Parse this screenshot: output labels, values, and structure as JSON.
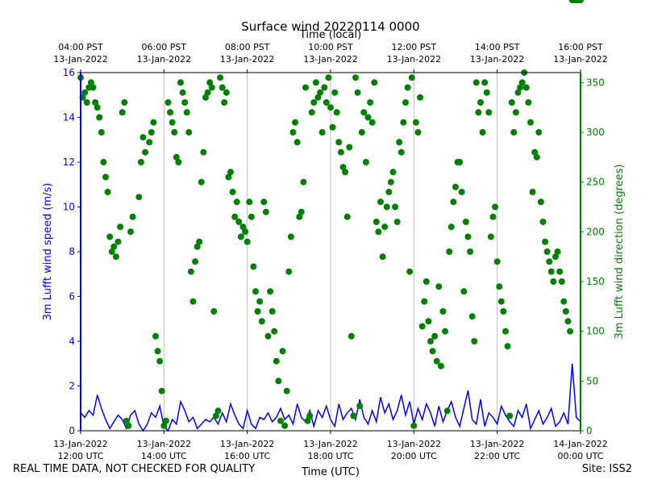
{
  "chart_data": {
    "type": "scatter",
    "title": "Surface wind 20220114 0000",
    "top_axis_label": "Time (local)",
    "top_ticks": [
      {
        "time": "04:00 PST",
        "date": "13-Jan-2022"
      },
      {
        "time": "06:00 PST",
        "date": "13-Jan-2022"
      },
      {
        "time": "08:00 PST",
        "date": "13-Jan-2022"
      },
      {
        "time": "10:00 PST",
        "date": "13-Jan-2022"
      },
      {
        "time": "12:00 PST",
        "date": "13-Jan-2022"
      },
      {
        "time": "14:00 PST",
        "date": "13-Jan-2022"
      },
      {
        "time": "16:00 PST",
        "date": "13-Jan-2022"
      }
    ],
    "bottom_ticks": [
      {
        "date": "13-Jan-2022",
        "time": "12:00 UTC"
      },
      {
        "date": "13-Jan-2022",
        "time": "14:00 UTC"
      },
      {
        "date": "13-Jan-2022",
        "time": "16:00 UTC"
      },
      {
        "date": "13-Jan-2022",
        "time": "18:00 UTC"
      },
      {
        "date": "13-Jan-2022",
        "time": "20:00 UTC"
      },
      {
        "date": "13-Jan-2022",
        "time": "22:00 UTC"
      },
      {
        "date": "14-Jan-2022",
        "time": "00:00 UTC"
      }
    ],
    "xlabel": "Time (UTC)",
    "xlim_hours_utc": [
      12,
      24
    ],
    "ylabel_left": "3m Lufft wind speed (m/s)",
    "ylim_left": [
      0,
      16
    ],
    "yticks_left": [
      "0",
      "2",
      "4",
      "6",
      "8",
      "10",
      "12",
      "14",
      "16"
    ],
    "ylabel_right": "3m Lufft wind direction (degrees)",
    "ylim_right": [
      0,
      360
    ],
    "yticks_right": [
      "0",
      "50",
      "100",
      "150",
      "200",
      "250",
      "300",
      "350"
    ],
    "grid": "vertical",
    "series": [
      {
        "name": "3m Lufft wind speed",
        "type": "line",
        "color": "#0000ff",
        "x_hours_utc": [
          12.0,
          12.1,
          12.2,
          12.3,
          12.4,
          12.5,
          12.6,
          12.7,
          12.8,
          12.9,
          13.0,
          13.1,
          13.2,
          13.3,
          13.4,
          13.5,
          13.6,
          13.7,
          13.8,
          13.9,
          14.0,
          14.1,
          14.2,
          14.3,
          14.4,
          14.5,
          14.6,
          14.7,
          14.8,
          14.9,
          15.0,
          15.1,
          15.2,
          15.3,
          15.4,
          15.5,
          15.6,
          15.7,
          15.8,
          15.9,
          16.0,
          16.1,
          16.2,
          16.3,
          16.4,
          16.5,
          16.6,
          16.7,
          16.8,
          16.9,
          17.0,
          17.1,
          17.2,
          17.3,
          17.4,
          17.5,
          17.6,
          17.7,
          17.8,
          17.9,
          18.0,
          18.1,
          18.2,
          18.3,
          18.4,
          18.5,
          18.6,
          18.7,
          18.8,
          18.9,
          19.0,
          19.1,
          19.2,
          19.3,
          19.4,
          19.5,
          19.6,
          19.7,
          19.8,
          19.9,
          20.0,
          20.1,
          20.2,
          20.3,
          20.4,
          20.5,
          20.6,
          20.7,
          20.8,
          20.9,
          21.0,
          21.1,
          21.2,
          21.3,
          21.4,
          21.5,
          21.6,
          21.7,
          21.8,
          21.9,
          22.0,
          22.1,
          22.2,
          22.3,
          22.4,
          22.5,
          22.6,
          22.7,
          22.8,
          22.9,
          23.0,
          23.1,
          23.2,
          23.3,
          23.4,
          23.5,
          23.6,
          23.7,
          23.8,
          23.9,
          24.0
        ],
        "values": [
          0.8,
          0.6,
          0.9,
          0.7,
          1.6,
          1.0,
          0.5,
          0.1,
          0.4,
          0.7,
          0.5,
          0.1,
          0.7,
          0.9,
          0.3,
          0.0,
          0.3,
          0.8,
          0.6,
          1.1,
          0.2,
          0.0,
          0.5,
          0.3,
          1.3,
          0.9,
          0.4,
          0.6,
          0.1,
          0.3,
          0.5,
          0.4,
          0.6,
          0.3,
          0.8,
          0.4,
          1.2,
          0.7,
          0.3,
          0.1,
          0.9,
          0.3,
          0.1,
          0.6,
          0.5,
          0.8,
          0.4,
          0.6,
          1.0,
          0.5,
          0.7,
          0.3,
          1.2,
          0.6,
          0.4,
          0.9,
          0.2,
          0.9,
          0.6,
          1.1,
          0.5,
          0.2,
          1.2,
          0.5,
          0.8,
          1.0,
          0.5,
          1.4,
          0.6,
          0.3,
          0.9,
          0.4,
          1.5,
          0.8,
          1.2,
          0.5,
          0.9,
          1.6,
          0.7,
          1.3,
          0.3,
          1.0,
          0.5,
          1.2,
          0.8,
          0.2,
          1.1,
          0.4,
          0.9,
          1.3,
          0.6,
          0.2,
          1.0,
          1.8,
          0.5,
          0.3,
          1.4,
          0.2,
          0.8,
          0.6,
          0.3,
          1.1,
          0.7,
          0.4,
          0.2,
          0.9,
          0.6,
          1.2,
          0.1,
          0.5,
          0.9,
          0.3,
          0.6,
          1.0,
          0.2,
          0.4,
          0.8,
          0.3,
          3.0,
          0.6,
          0.4
        ]
      },
      {
        "name": "3m Lufft wind direction",
        "type": "scatter",
        "color": "#008000",
        "x_hours_utc": [
          12.0,
          12.05,
          12.1,
          12.15,
          12.2,
          12.25,
          12.3,
          12.35,
          12.4,
          12.45,
          12.5,
          12.55,
          12.6,
          12.65,
          12.7,
          12.75,
          12.8,
          12.85,
          12.9,
          12.95,
          13.0,
          13.05,
          13.1,
          13.15,
          13.2,
          13.25,
          13.4,
          13.45,
          13.5,
          13.55,
          13.65,
          13.7,
          13.75,
          13.8,
          13.85,
          13.9,
          13.95,
          14.0,
          14.05,
          14.1,
          14.15,
          14.2,
          14.25,
          14.3,
          14.35,
          14.4,
          14.45,
          14.5,
          14.55,
          14.6,
          14.65,
          14.7,
          14.75,
          14.8,
          14.85,
          14.9,
          14.95,
          15.0,
          15.05,
          15.1,
          15.15,
          15.2,
          15.25,
          15.3,
          15.35,
          15.4,
          15.45,
          15.5,
          15.55,
          15.6,
          15.65,
          15.7,
          15.75,
          15.8,
          15.85,
          15.9,
          15.95,
          16.0,
          16.05,
          16.1,
          16.15,
          16.2,
          16.25,
          16.3,
          16.35,
          16.4,
          16.45,
          16.5,
          16.55,
          16.6,
          16.65,
          16.7,
          16.75,
          16.8,
          16.85,
          16.9,
          16.95,
          17.0,
          17.05,
          17.1,
          17.15,
          17.2,
          17.25,
          17.3,
          17.35,
          17.4,
          17.45,
          17.5,
          17.55,
          17.6,
          17.65,
          17.7,
          17.75,
          17.8,
          17.85,
          17.9,
          17.95,
          18.0,
          18.05,
          18.1,
          18.15,
          18.2,
          18.25,
          18.3,
          18.35,
          18.4,
          18.45,
          18.5,
          18.55,
          18.6,
          18.65,
          18.7,
          18.75,
          18.8,
          18.85,
          18.9,
          18.95,
          19.0,
          19.05,
          19.1,
          19.15,
          19.2,
          19.25,
          19.3,
          19.35,
          19.4,
          19.45,
          19.5,
          19.55,
          19.6,
          19.65,
          19.7,
          19.75,
          19.8,
          19.85,
          19.9,
          19.95,
          20.0,
          20.05,
          20.1,
          20.15,
          20.2,
          20.25,
          20.3,
          20.35,
          20.4,
          20.45,
          20.5,
          20.55,
          20.6,
          20.65,
          20.7,
          20.75,
          20.8,
          20.85,
          20.9,
          20.95,
          21.0,
          21.05,
          21.1,
          21.15,
          21.2,
          21.25,
          21.3,
          21.35,
          21.4,
          21.45,
          21.5,
          21.55,
          21.6,
          21.65,
          21.7,
          21.75,
          21.8,
          21.85,
          21.9,
          21.95,
          22.0,
          22.05,
          22.1,
          22.15,
          22.2,
          22.25,
          22.3,
          22.35,
          22.4,
          22.45,
          22.5,
          22.55,
          22.6,
          22.65,
          22.7,
          22.75,
          22.8,
          22.85,
          22.9,
          22.95,
          23.0,
          23.05,
          23.1,
          23.15,
          23.2,
          23.25,
          23.3,
          23.35,
          23.4,
          23.45,
          23.5,
          23.55,
          23.6,
          23.65,
          23.7,
          23.75,
          23.8,
          23.85,
          23.9,
          23.95,
          24.0
        ],
        "values": [
          355,
          335,
          340,
          330,
          345,
          350,
          345,
          330,
          325,
          315,
          300,
          270,
          255,
          240,
          195,
          180,
          185,
          175,
          190,
          205,
          320,
          330,
          10,
          5,
          200,
          215,
          235,
          270,
          295,
          280,
          290,
          300,
          310,
          95,
          80,
          70,
          40,
          5,
          10,
          330,
          320,
          310,
          300,
          275,
          270,
          350,
          340,
          330,
          320,
          300,
          160,
          130,
          170,
          185,
          190,
          250,
          280,
          335,
          340,
          350,
          345,
          120,
          15,
          20,
          355,
          345,
          330,
          340,
          255,
          260,
          240,
          215,
          230,
          210,
          195,
          205,
          200,
          190,
          230,
          215,
          165,
          140,
          120,
          130,
          110,
          230,
          220,
          95,
          140,
          120,
          100,
          70,
          50,
          10,
          80,
          5,
          40,
          160,
          195,
          300,
          310,
          290,
          215,
          220,
          250,
          345,
          10,
          15,
          320,
          330,
          350,
          335,
          340,
          300,
          345,
          330,
          355,
          325,
          305,
          340,
          320,
          290,
          280,
          265,
          260,
          215,
          285,
          95,
          15,
          355,
          340,
          25,
          300,
          320,
          270,
          315,
          330,
          310,
          350,
          210,
          200,
          230,
          175,
          205,
          225,
          240,
          250,
          260,
          225,
          210,
          290,
          280,
          310,
          330,
          345,
          160,
          355,
          5,
          310,
          300,
          335,
          105,
          130,
          150,
          110,
          90,
          80,
          95,
          70,
          145,
          65,
          120,
          100,
          20,
          180,
          205,
          230,
          245,
          270,
          270,
          240,
          140,
          210,
          195,
          180,
          115,
          90,
          350,
          320,
          330,
          300,
          350,
          340,
          320,
          195,
          215,
          225,
          170,
          145,
          130,
          120,
          100,
          85,
          15,
          330,
          300,
          320,
          340,
          345,
          350,
          360,
          345,
          330,
          310,
          240,
          280,
          275,
          300,
          230,
          210,
          190,
          180,
          170,
          160,
          150,
          175,
          180,
          160,
          150,
          130,
          120,
          110,
          100
        ]
      }
    ]
  },
  "footer": {
    "left_note": "REAL TIME DATA, NOT CHECKED FOR QUALITY",
    "right_note": "Site: ISS2"
  }
}
